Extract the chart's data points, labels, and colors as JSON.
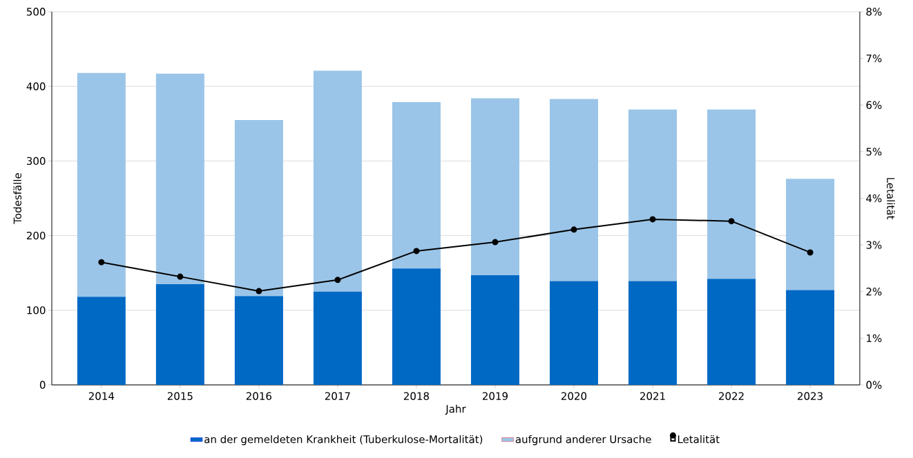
{
  "chart_data": {
    "type": "bar",
    "stacked": true,
    "xlabel": "Jahr",
    "ylabel": "Todesfälle",
    "y2label": "Letalität",
    "categories": [
      "2014",
      "2015",
      "2016",
      "2017",
      "2018",
      "2019",
      "2020",
      "2021",
      "2022",
      "2023"
    ],
    "series": [
      {
        "name": "an der gemeldeten Krankheit (Tuberkulose-Mortalität)",
        "color": "#0069c4",
        "values": [
          118,
          135,
          119,
          125,
          156,
          147,
          139,
          139,
          142,
          127
        ]
      },
      {
        "name": "aufgrund anderer Ursache",
        "color": "#9bc5e8",
        "values": [
          300,
          282,
          236,
          296,
          223,
          237,
          244,
          230,
          227,
          149
        ]
      },
      {
        "name": "Letalität",
        "type": "line",
        "axis": "y2",
        "color": "#000000",
        "values": [
          2.63,
          2.32,
          2.01,
          2.25,
          2.87,
          3.06,
          3.33,
          3.55,
          3.51,
          2.84
        ]
      }
    ],
    "ylim": [
      0,
      500
    ],
    "yticks": [
      0,
      100,
      200,
      300,
      400,
      500
    ],
    "y2lim": [
      0,
      8
    ],
    "y2ticks": [
      {
        "value": 0,
        "label": "0%"
      },
      {
        "value": 1,
        "label": "1%"
      },
      {
        "value": 2,
        "label": "2%"
      },
      {
        "value": 3,
        "label": "3%"
      },
      {
        "value": 4,
        "label": "4%"
      },
      {
        "value": 5,
        "label": "5%"
      },
      {
        "value": 6,
        "label": "6%"
      },
      {
        "value": 7,
        "label": "7%"
      },
      {
        "value": 8,
        "label": "8%"
      }
    ],
    "grid": "y",
    "legend": "bottom",
    "marker": "circle",
    "line_style": "solid"
  }
}
